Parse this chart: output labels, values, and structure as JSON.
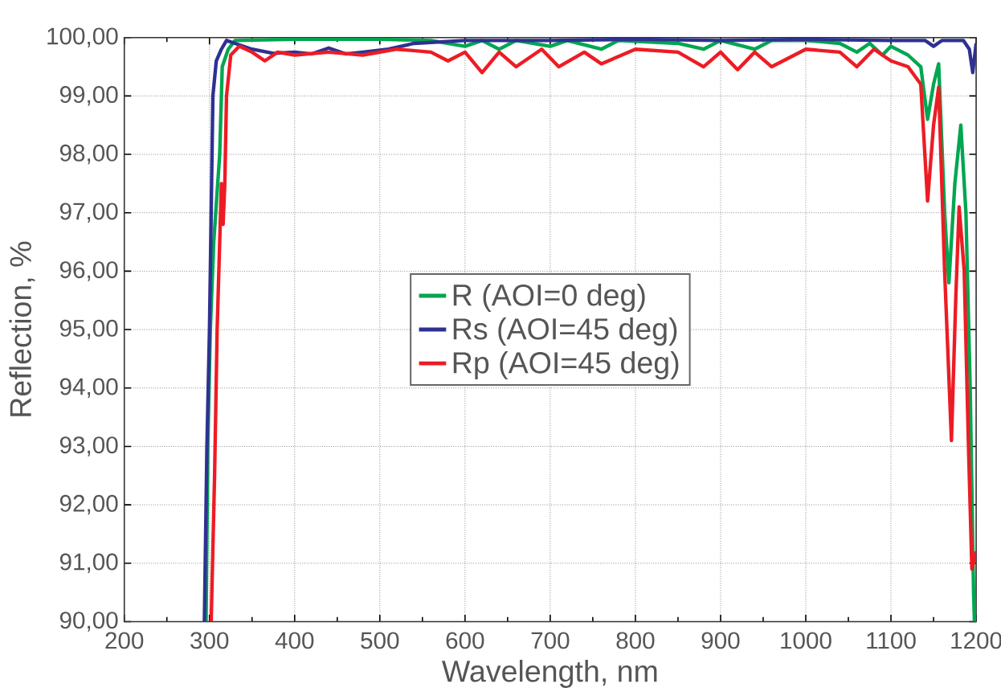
{
  "chart_data": {
    "type": "line",
    "xlabel": "Wavelength, nm",
    "ylabel": "Reflection, %",
    "xlim": [
      200,
      1200
    ],
    "ylim": [
      90,
      100
    ],
    "xticks": [
      200,
      300,
      400,
      500,
      600,
      700,
      800,
      900,
      1000,
      1100,
      1200
    ],
    "yticks": [
      {
        "value": 90,
        "label": "90,00"
      },
      {
        "value": 91,
        "label": "91,00"
      },
      {
        "value": 92,
        "label": "92,00"
      },
      {
        "value": 93,
        "label": "93,00"
      },
      {
        "value": 94,
        "label": "94,00"
      },
      {
        "value": 95,
        "label": "95,00"
      },
      {
        "value": 96,
        "label": "96,00"
      },
      {
        "value": 97,
        "label": "97,00"
      },
      {
        "value": 98,
        "label": "98,00"
      },
      {
        "value": 99,
        "label": "99,00"
      },
      {
        "value": 100,
        "label": "100,00"
      }
    ],
    "grid": true,
    "legend": "center",
    "marker": "none",
    "line_style": "solid",
    "series": [
      {
        "name": "R (AOI=0 deg)",
        "color": "#00a650",
        "x": [
          296,
          298,
          301,
          305,
          312,
          315,
          322,
          330,
          400,
          500,
          560,
          600,
          620,
          640,
          660,
          700,
          720,
          760,
          780,
          850,
          880,
          900,
          940,
          960,
          1000,
          1040,
          1060,
          1075,
          1090,
          1100,
          1120,
          1135,
          1143,
          1150,
          1156,
          1163,
          1168,
          1175,
          1182,
          1188,
          1193,
          1197,
          1198
        ],
        "values": [
          90,
          93,
          95,
          96.5,
          98,
          99.5,
          99.8,
          99.95,
          99.97,
          99.97,
          99.95,
          99.85,
          99.95,
          99.8,
          99.95,
          99.85,
          99.95,
          99.8,
          99.95,
          99.9,
          99.8,
          99.95,
          99.8,
          99.95,
          99.95,
          99.9,
          99.75,
          99.9,
          99.7,
          99.85,
          99.7,
          99.5,
          98.6,
          99.2,
          99.55,
          97,
          95.8,
          97.5,
          98.5,
          97,
          94,
          90.5,
          90
        ]
      },
      {
        "name": "Rs (AOI=45 deg)",
        "color": "#2e3192",
        "x": [
          294,
          297,
          300,
          302,
          304,
          308,
          314,
          320,
          330,
          350,
          375,
          400,
          420,
          440,
          460,
          480,
          510,
          540,
          600,
          700,
          800,
          900,
          1000,
          1100,
          1140,
          1150,
          1160,
          1185,
          1192,
          1196,
          1200
        ],
        "values": [
          90,
          93,
          95,
          97,
          99,
          99.6,
          99.8,
          99.95,
          99.9,
          99.8,
          99.73,
          99.75,
          99.72,
          99.82,
          99.72,
          99.75,
          99.8,
          99.9,
          99.95,
          99.95,
          99.97,
          99.95,
          99.97,
          99.95,
          99.95,
          99.85,
          99.95,
          99.95,
          99.8,
          99.4,
          99.9
        ]
      },
      {
        "name": "Rp (AOI=45 deg)",
        "color": "#ed1c24",
        "x": [
          302,
          306,
          309,
          312,
          314,
          316,
          318,
          320,
          325,
          335,
          350,
          365,
          380,
          400,
          440,
          480,
          520,
          560,
          580,
          600,
          620,
          640,
          660,
          690,
          710,
          740,
          760,
          800,
          850,
          880,
          900,
          920,
          940,
          960,
          1000,
          1040,
          1060,
          1080,
          1100,
          1120,
          1135,
          1143,
          1150,
          1156,
          1163,
          1171,
          1176,
          1180,
          1186,
          1191,
          1195,
          1200
        ],
        "values": [
          90,
          92.5,
          95,
          96.5,
          97.5,
          96.8,
          97.5,
          99,
          99.7,
          99.85,
          99.75,
          99.6,
          99.75,
          99.7,
          99.75,
          99.7,
          99.8,
          99.75,
          99.6,
          99.75,
          99.4,
          99.75,
          99.5,
          99.8,
          99.5,
          99.75,
          99.55,
          99.8,
          99.75,
          99.5,
          99.75,
          99.45,
          99.75,
          99.5,
          99.8,
          99.75,
          99.5,
          99.8,
          99.6,
          99.5,
          99.2,
          97.2,
          98.5,
          99.15,
          96,
          93.1,
          95.5,
          97.1,
          96,
          93,
          90.9,
          91.2
        ]
      }
    ]
  }
}
